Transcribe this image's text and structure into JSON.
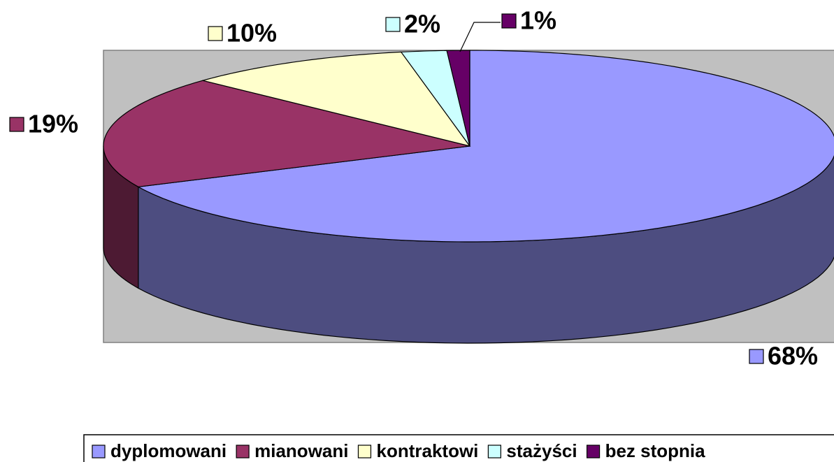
{
  "chart_data": {
    "type": "pie3d",
    "categories": [
      "dyplomowani",
      "mianowani",
      "kontraktowi",
      "stażyści",
      "bez stopnia"
    ],
    "values": [
      68,
      19,
      10,
      2,
      1
    ],
    "value_labels": [
      "68%",
      "19%",
      "10%",
      "2%",
      "1%"
    ],
    "colors": [
      "#9999ff",
      "#993366",
      "#ffffcc",
      "#ccffff",
      "#660066"
    ],
    "legend": "bottom"
  }
}
